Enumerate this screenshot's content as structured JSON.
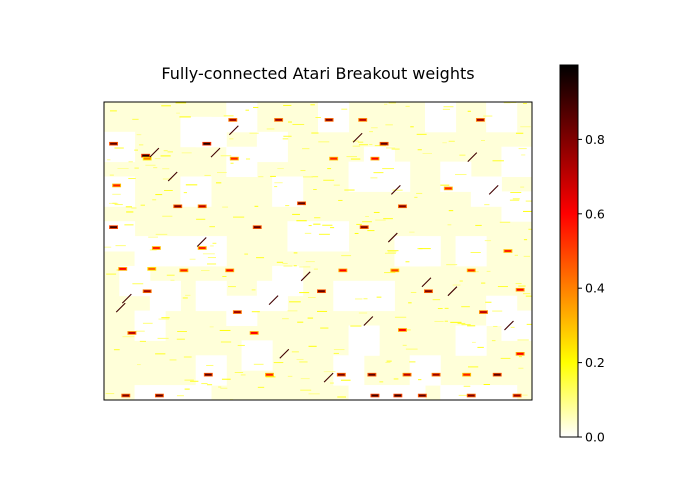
{
  "chart_data": {
    "type": "heatmap",
    "title": "Fully-connected Atari Breakout weights",
    "xlabel": "",
    "ylabel": "",
    "x_ticks": "none",
    "y_ticks": "none",
    "colormap": "hot_r",
    "colorbar": {
      "range": [
        0.0,
        1.0
      ],
      "ticks": [
        {
          "value": 0.0,
          "label": "0.0"
        },
        {
          "value": 0.2,
          "label": "0.2"
        },
        {
          "value": 0.4,
          "label": "0.4"
        },
        {
          "value": 0.6,
          "label": "0.6"
        },
        {
          "value": 0.8,
          "label": "0.8"
        }
      ],
      "stops": [
        "#ffffff",
        "#ffff00",
        "#ff8000",
        "#ff0000",
        "#800000",
        "#000000"
      ]
    },
    "background_value": 0.03,
    "cell_grid": [
      28,
      20
    ],
    "white_patches": [
      [
        0,
        2
      ],
      [
        5,
        1
      ],
      [
        6,
        1
      ],
      [
        8,
        0
      ],
      [
        8,
        3
      ],
      [
        14,
        0
      ],
      [
        17,
        3
      ],
      [
        21,
        0
      ],
      [
        22,
        4
      ],
      [
        25,
        0
      ],
      [
        0,
        5
      ],
      [
        5,
        5
      ],
      [
        10,
        2
      ],
      [
        11,
        5
      ],
      [
        16,
        4
      ],
      [
        18,
        4
      ],
      [
        24,
        5
      ],
      [
        26,
        3
      ],
      [
        26,
        6
      ],
      [
        0,
        8
      ],
      [
        2,
        9
      ],
      [
        4,
        9
      ],
      [
        6,
        9
      ],
      [
        12,
        8
      ],
      [
        14,
        8
      ],
      [
        19,
        9
      ],
      [
        20,
        9
      ],
      [
        23,
        9
      ],
      [
        1,
        11
      ],
      [
        3,
        12
      ],
      [
        6,
        12
      ],
      [
        10,
        12
      ],
      [
        11,
        11
      ],
      [
        15,
        12
      ],
      [
        17,
        12
      ],
      [
        25,
        13
      ],
      [
        2,
        14
      ],
      [
        8,
        13
      ],
      [
        16,
        15
      ],
      [
        23,
        15
      ],
      [
        26,
        14
      ],
      [
        6,
        17
      ],
      [
        9,
        16
      ],
      [
        15,
        17
      ],
      [
        20,
        17
      ],
      [
        2,
        19
      ],
      [
        3,
        19
      ],
      [
        5,
        19
      ],
      [
        16,
        19
      ],
      [
        17,
        19
      ],
      [
        18,
        19
      ],
      [
        19,
        19
      ],
      [
        22,
        19
      ],
      [
        24,
        19
      ],
      [
        25,
        19
      ]
    ],
    "hot_marks": [
      [
        0.4,
        2.8,
        0.85
      ],
      [
        2.5,
        3.6,
        0.95
      ],
      [
        6.5,
        2.8,
        0.95
      ],
      [
        8.2,
        1.2,
        0.75
      ],
      [
        11.2,
        1.2,
        0.75
      ],
      [
        14.5,
        1.2,
        0.8
      ],
      [
        16.7,
        1.2,
        0.7
      ],
      [
        18.1,
        2.8,
        0.85
      ],
      [
        24.4,
        1.2,
        0.75
      ],
      [
        2.6,
        3.8,
        0.4
      ],
      [
        8.3,
        3.8,
        0.55
      ],
      [
        14.8,
        3.8,
        0.55
      ],
      [
        17.5,
        3.8,
        0.6
      ],
      [
        0.6,
        5.6,
        0.55
      ],
      [
        4.6,
        7.0,
        0.8
      ],
      [
        6.2,
        7.0,
        0.7
      ],
      [
        12.7,
        6.8,
        0.85
      ],
      [
        19.3,
        7.0,
        0.8
      ],
      [
        22.3,
        5.8,
        0.55
      ],
      [
        0.4,
        8.4,
        0.9
      ],
      [
        3.2,
        9.8,
        0.55
      ],
      [
        6.2,
        9.8,
        0.55
      ],
      [
        9.8,
        8.4,
        0.85
      ],
      [
        16.8,
        8.4,
        0.8
      ],
      [
        1.0,
        11.2,
        0.6
      ],
      [
        2.9,
        11.2,
        0.45
      ],
      [
        5.0,
        11.3,
        0.55
      ],
      [
        8.0,
        11.3,
        0.6
      ],
      [
        15.4,
        11.3,
        0.6
      ],
      [
        18.8,
        11.3,
        0.5
      ],
      [
        21.0,
        12.7,
        0.8
      ],
      [
        23.8,
        11.3,
        0.55
      ],
      [
        2.6,
        12.7,
        0.75
      ],
      [
        14.0,
        12.7,
        0.85
      ],
      [
        1.6,
        15.5,
        0.7
      ],
      [
        8.5,
        14.1,
        0.75
      ],
      [
        9.6,
        15.5,
        0.6
      ],
      [
        19.3,
        15.3,
        0.6
      ],
      [
        24.6,
        14.1,
        0.7
      ],
      [
        27.0,
        16.9,
        0.6
      ],
      [
        6.6,
        18.3,
        0.85
      ],
      [
        10.6,
        18.3,
        0.55
      ],
      [
        15.3,
        18.3,
        0.8
      ],
      [
        17.3,
        18.3,
        0.85
      ],
      [
        19.6,
        18.3,
        0.7
      ],
      [
        21.5,
        18.3,
        0.75
      ],
      [
        23.5,
        18.3,
        0.55
      ],
      [
        25.5,
        18.3,
        0.85
      ],
      [
        1.2,
        19.7,
        0.8
      ],
      [
        3.4,
        19.7,
        0.85
      ],
      [
        17.5,
        19.7,
        0.9
      ],
      [
        19.0,
        19.7,
        0.9
      ],
      [
        20.6,
        19.7,
        0.85
      ],
      [
        23.8,
        19.7,
        0.8
      ],
      [
        26.8,
        19.7,
        0.75
      ],
      [
        26.2,
        10.0,
        0.55
      ],
      [
        27.0,
        12.6,
        0.6
      ]
    ],
    "diagonal_marks": [
      [
        7.0,
        3.7
      ],
      [
        8.2,
        2.2
      ],
      [
        3.0,
        3.7
      ],
      [
        18.8,
        6.2
      ],
      [
        18.6,
        9.4
      ],
      [
        25.2,
        6.2
      ],
      [
        23.8,
        4.0
      ],
      [
        12.9,
        12.0
      ],
      [
        20.8,
        12.4
      ],
      [
        1.2,
        13.5
      ],
      [
        17.0,
        15.0
      ],
      [
        26.2,
        15.3
      ],
      [
        14.4,
        18.8
      ],
      [
        11.5,
        17.2
      ],
      [
        4.2,
        5.3
      ],
      [
        6.1,
        9.7
      ],
      [
        16.3,
        2.7
      ],
      [
        0.8,
        14.1
      ],
      [
        22.5,
        13.0
      ],
      [
        10.8,
        13.6
      ]
    ]
  }
}
